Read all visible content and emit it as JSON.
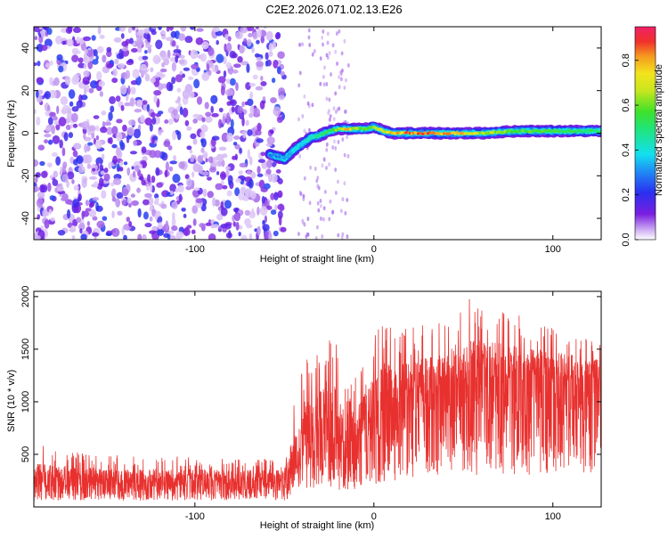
{
  "title": "C2E2.2026.071.02.13.E26",
  "colors": {
    "snr_line": "#e8312f",
    "background": "#ffffff",
    "axis": "#000000"
  },
  "chart_data": [
    {
      "type": "heatmap",
      "xlabel": "Height of straight line (km)",
      "ylabel": "Frequency (Hz)",
      "xlim": [
        -190,
        127
      ],
      "ylim": [
        -50,
        50
      ],
      "x_ticks": [
        -100,
        0,
        100
      ],
      "x_tick_labels": [
        "-100",
        "0",
        "100"
      ],
      "y_ticks": [
        -40,
        -20,
        0,
        20,
        40
      ],
      "y_tick_labels": [
        "-40",
        "-20",
        "0",
        "20",
        "40"
      ],
      "colorbar": {
        "label": "Normalized spectral amplitude",
        "range": [
          0,
          0.95
        ],
        "ticks": [
          0,
          0.2,
          0.4,
          0.6,
          0.8
        ],
        "tick_labels": [
          "0.0",
          "0.2",
          "0.4",
          "0.6",
          "0.8"
        ],
        "colormap": "rainbow (white-violet-blue-cyan-green-yellow-red-magenta)"
      },
      "noise_region_x": [
        -190,
        -50
      ],
      "signal_track": {
        "x": [
          -58,
          -50,
          -45,
          -40,
          -35,
          -30,
          -25,
          -20,
          -15,
          -10,
          -5,
          0,
          5,
          10,
          20,
          40,
          60,
          80,
          100,
          127
        ],
        "frequency": [
          -10,
          -12,
          -8,
          -5,
          -2,
          -1,
          1,
          2,
          2,
          2,
          2,
          3,
          1,
          0,
          0,
          0,
          0,
          1,
          1,
          1
        ],
        "amplitude": [
          0.3,
          0.35,
          0.4,
          0.45,
          0.5,
          0.55,
          0.6,
          0.7,
          0.85,
          0.7,
          0.6,
          0.7,
          0.75,
          0.85,
          0.9,
          0.9,
          0.75,
          0.65,
          0.6,
          0.55
        ]
      }
    },
    {
      "type": "line",
      "xlabel": "Height of straight line (km)",
      "ylabel": "SNR (10 * v/v)",
      "xlim": [
        -190,
        127
      ],
      "ylim": [
        0,
        2050
      ],
      "x_ticks": [
        -100,
        0,
        100
      ],
      "x_tick_labels": [
        "-100",
        "0",
        "100"
      ],
      "y_ticks": [
        500,
        1000,
        1500,
        2000
      ],
      "y_tick_labels": [
        "500",
        "1000",
        "1500",
        "2000"
      ],
      "series": [
        {
          "x": [
            -190,
            -170,
            -150,
            -130,
            -110,
            -90,
            -70,
            -50,
            -40,
            -35,
            -30,
            -25,
            -20,
            -15,
            -10,
            -5,
            0,
            5,
            10,
            15,
            20,
            30,
            40,
            50,
            60,
            70,
            80,
            90,
            100,
            110,
            120,
            127
          ],
          "baseline": [
            230,
            230,
            235,
            240,
            245,
            245,
            250,
            250,
            600,
            700,
            750,
            800,
            650,
            500,
            700,
            800,
            850,
            900,
            950,
            1000,
            1050,
            1100,
            1150,
            1200,
            1200,
            1220,
            1230,
            1220,
            1210,
            1200,
            1200,
            1200
          ],
          "peak": [
            600,
            550,
            500,
            480,
            480,
            460,
            460,
            460,
            1450,
            1400,
            1550,
            1640,
            1550,
            1100,
            1350,
            1550,
            1600,
            1850,
            1750,
            1700,
            1700,
            1750,
            1800,
            2050,
            1950,
            1900,
            1850,
            1800,
            1750,
            1700,
            1650,
            1600
          ]
        }
      ]
    }
  ]
}
